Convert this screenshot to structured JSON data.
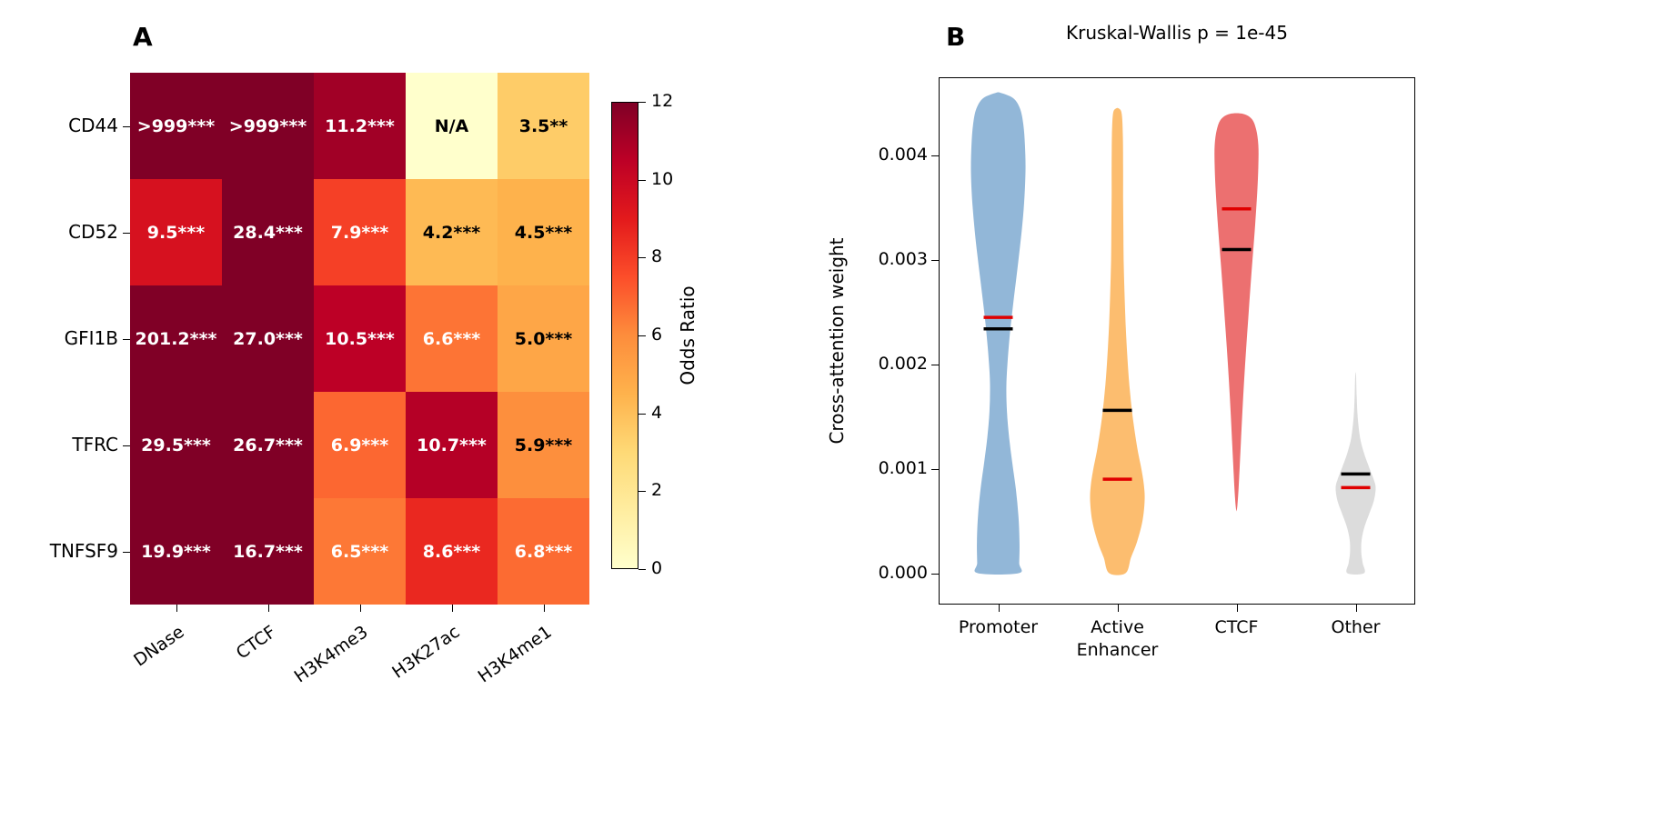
{
  "figure": {
    "panel_a_label": "A",
    "panel_b_label": "B"
  },
  "chart_data": [
    {
      "type": "heatmap",
      "panel": "A",
      "rows": [
        "CD44",
        "CD52",
        "GFI1B",
        "TFRC",
        "TNFSF9"
      ],
      "columns": [
        "DNase",
        "CTCF",
        "H3K4me3",
        "H3K27ac",
        "H3K4me1"
      ],
      "cells": [
        [
          {
            "text": ">999***",
            "value": 999
          },
          {
            "text": ">999***",
            "value": 999
          },
          {
            "text": "11.2***",
            "value": 11.2
          },
          {
            "text": "N/A",
            "value": null
          },
          {
            "text": "3.5**",
            "value": 3.5
          }
        ],
        [
          {
            "text": "9.5***",
            "value": 9.5
          },
          {
            "text": "28.4***",
            "value": 28.4
          },
          {
            "text": "7.9***",
            "value": 7.9
          },
          {
            "text": "4.2***",
            "value": 4.2
          },
          {
            "text": "4.5***",
            "value": 4.5
          }
        ],
        [
          {
            "text": "201.2***",
            "value": 201.2
          },
          {
            "text": "27.0***",
            "value": 27.0
          },
          {
            "text": "10.5***",
            "value": 10.5
          },
          {
            "text": "6.6***",
            "value": 6.6
          },
          {
            "text": "5.0***",
            "value": 5.0
          }
        ],
        [
          {
            "text": "29.5***",
            "value": 29.5
          },
          {
            "text": "26.7***",
            "value": 26.7
          },
          {
            "text": "6.9***",
            "value": 6.9
          },
          {
            "text": "10.7***",
            "value": 10.7
          },
          {
            "text": "5.9***",
            "value": 5.9
          }
        ],
        [
          {
            "text": "19.9***",
            "value": 19.9
          },
          {
            "text": "16.7***",
            "value": 16.7
          },
          {
            "text": "6.5***",
            "value": 6.5
          },
          {
            "text": "8.6***",
            "value": 8.6
          },
          {
            "text": "6.8***",
            "value": 6.8
          }
        ]
      ],
      "colorbar": {
        "label": "Odds Ratio",
        "ticks": [
          0,
          2,
          4,
          6,
          8,
          10,
          12
        ],
        "vmin": 0,
        "vmax": 12,
        "colormap": "YlOrRd"
      },
      "text_color_threshold": 6
    },
    {
      "type": "violin",
      "panel": "B",
      "title": "Kruskal-Wallis p = 1e-45",
      "ylabel": "Cross-attention weight",
      "ylim": [
        -0.0003,
        0.00475
      ],
      "yticks": [
        {
          "value": 0.0,
          "label": "0.000"
        },
        {
          "value": 0.001,
          "label": "0.001"
        },
        {
          "value": 0.002,
          "label": "0.002"
        },
        {
          "value": 0.003,
          "label": "0.003"
        },
        {
          "value": 0.004,
          "label": "0.004"
        }
      ],
      "line_colors": {
        "mean": "#000000",
        "median": "#e00000"
      },
      "series": [
        {
          "name": "Promoter",
          "label": "Promoter",
          "color": "#92b7d8",
          "mean": 0.00234,
          "median": 0.00245,
          "max_halfwidth": 30,
          "profile": [
            [
              0.0046,
              0.1
            ],
            [
              0.00455,
              0.55
            ],
            [
              0.00445,
              0.8
            ],
            [
              0.0043,
              0.92
            ],
            [
              0.0041,
              0.98
            ],
            [
              0.00385,
              1.0
            ],
            [
              0.00355,
              0.95
            ],
            [
              0.00325,
              0.85
            ],
            [
              0.00295,
              0.72
            ],
            [
              0.00265,
              0.58
            ],
            [
              0.00235,
              0.45
            ],
            [
              0.00205,
              0.35
            ],
            [
              0.0018,
              0.3
            ],
            [
              0.00155,
              0.32
            ],
            [
              0.0013,
              0.4
            ],
            [
              0.00105,
              0.52
            ],
            [
              0.0008,
              0.65
            ],
            [
              0.00055,
              0.74
            ],
            [
              0.0003,
              0.78
            ],
            [
              0.0001,
              0.77
            ],
            [
              0.0,
              0.75
            ]
          ]
        },
        {
          "name": "Active Enhancer",
          "label": "Active\nEnhancer",
          "color": "#fcbd6f",
          "mean": 0.00156,
          "median": 0.0009,
          "max_halfwidth": 30,
          "profile": [
            [
              0.00445,
              0.06
            ],
            [
              0.0044,
              0.16
            ],
            [
              0.0042,
              0.2
            ],
            [
              0.0039,
              0.21
            ],
            [
              0.0036,
              0.21
            ],
            [
              0.0033,
              0.22
            ],
            [
              0.003,
              0.23
            ],
            [
              0.0027,
              0.26
            ],
            [
              0.0024,
              0.3
            ],
            [
              0.0021,
              0.36
            ],
            [
              0.0018,
              0.44
            ],
            [
              0.0015,
              0.56
            ],
            [
              0.0012,
              0.73
            ],
            [
              0.001,
              0.88
            ],
            [
              0.00085,
              0.97
            ],
            [
              0.0007,
              1.0
            ],
            [
              0.0005,
              0.92
            ],
            [
              0.0003,
              0.72
            ],
            [
              0.00015,
              0.5
            ],
            [
              0.0,
              0.3
            ]
          ]
        },
        {
          "name": "CTCF",
          "label": "CTCF",
          "color": "#ec7070",
          "mean": 0.0031,
          "median": 0.00349,
          "max_halfwidth": 24,
          "profile": [
            [
              0.0044,
              0.3
            ],
            [
              0.00435,
              0.7
            ],
            [
              0.00425,
              0.9
            ],
            [
              0.0041,
              1.0
            ],
            [
              0.0039,
              1.0
            ],
            [
              0.00365,
              0.95
            ],
            [
              0.00335,
              0.86
            ],
            [
              0.00305,
              0.75
            ],
            [
              0.00275,
              0.64
            ],
            [
              0.00245,
              0.54
            ],
            [
              0.00215,
              0.44
            ],
            [
              0.00185,
              0.35
            ],
            [
              0.00155,
              0.27
            ],
            [
              0.00125,
              0.2
            ],
            [
              0.001,
              0.14
            ],
            [
              0.0008,
              0.09
            ],
            [
              0.00065,
              0.04
            ],
            [
              0.0006,
              0.01
            ]
          ]
        },
        {
          "name": "Other",
          "label": "Other",
          "color": "#dcdcdc",
          "mean": 0.00095,
          "median": 0.00082,
          "max_halfwidth": 22,
          "profile": [
            [
              0.0019,
              0.02
            ],
            [
              0.0017,
              0.05
            ],
            [
              0.0015,
              0.1
            ],
            [
              0.0013,
              0.22
            ],
            [
              0.00115,
              0.42
            ],
            [
              0.001,
              0.7
            ],
            [
              0.0009,
              0.9
            ],
            [
              0.00082,
              1.0
            ],
            [
              0.0007,
              0.92
            ],
            [
              0.00058,
              0.7
            ],
            [
              0.00045,
              0.45
            ],
            [
              0.00032,
              0.3
            ],
            [
              0.0002,
              0.28
            ],
            [
              0.0001,
              0.35
            ],
            [
              0.0,
              0.42
            ]
          ]
        }
      ]
    }
  ]
}
